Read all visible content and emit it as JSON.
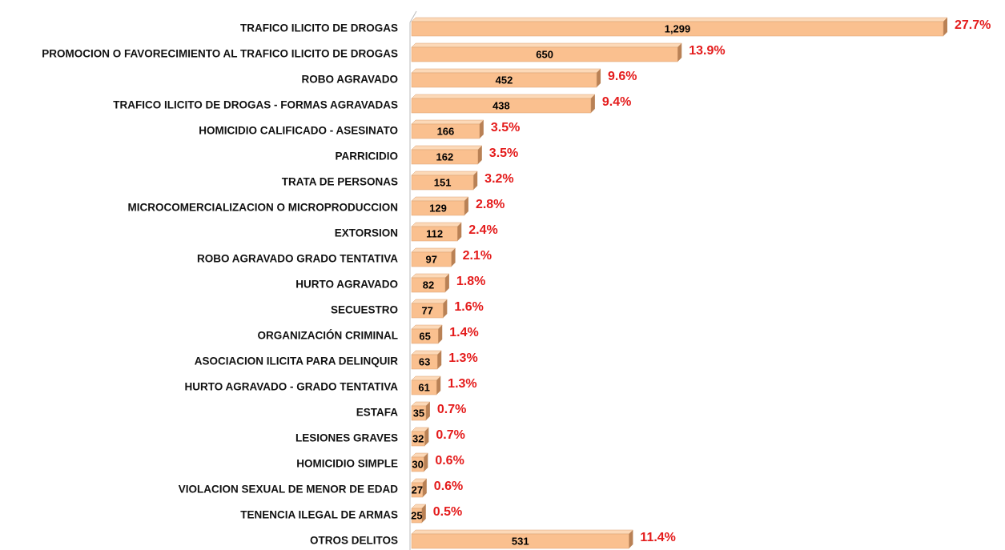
{
  "chart_data": {
    "type": "bar",
    "orientation": "horizontal",
    "categories": [
      "TRAFICO ILICITO DE DROGAS",
      "PROMOCION O FAVORECIMIENTO AL TRAFICO ILICITO DE DROGAS",
      "ROBO AGRAVADO",
      "TRAFICO ILICITO DE DROGAS - FORMAS AGRAVADAS",
      "HOMICIDIO CALIFICADO - ASESINATO",
      "PARRICIDIO",
      "TRATA DE PERSONAS",
      "MICROCOMERCIALIZACION O MICROPRODUCCION",
      "EXTORSION",
      "ROBO AGRAVADO GRADO TENTATIVA",
      "HURTO AGRAVADO",
      "SECUESTRO",
      "ORGANIZACIÓN CRIMINAL",
      "ASOCIACION ILICITA PARA DELINQUIR",
      "HURTO AGRAVADO - GRADO TENTATIVA",
      "ESTAFA",
      "LESIONES GRAVES",
      "HOMICIDIO SIMPLE",
      "VIOLACION SEXUAL DE MENOR DE EDAD",
      "TENENCIA ILEGAL DE ARMAS",
      "OTROS DELITOS"
    ],
    "values": [
      1299,
      650,
      452,
      438,
      166,
      162,
      151,
      129,
      112,
      97,
      82,
      77,
      65,
      63,
      61,
      35,
      32,
      30,
      27,
      25,
      531
    ],
    "value_labels": [
      "1,299",
      "650",
      "452",
      "438",
      "166",
      "162",
      "151",
      "129",
      "112",
      "97",
      "82",
      "77",
      "65",
      "63",
      "61",
      "35",
      "32",
      "30",
      "27",
      "25",
      "531"
    ],
    "percents": [
      27.7,
      13.9,
      9.6,
      9.4,
      3.5,
      3.5,
      3.2,
      2.8,
      2.4,
      2.1,
      1.8,
      1.6,
      1.4,
      1.3,
      1.3,
      0.7,
      0.7,
      0.6,
      0.6,
      0.5,
      11.4
    ],
    "percent_labels": [
      "27.7%",
      "13.9%",
      "9.6%",
      "9.4%",
      "3.5%",
      "3.5%",
      "3.2%",
      "2.8%",
      "2.4%",
      "2.1%",
      "1.8%",
      "1.6%",
      "1.4%",
      "1.3%",
      "1.3%",
      "0.7%",
      "0.7%",
      "0.6%",
      "0.6%",
      "0.5%",
      "11.4%"
    ],
    "color": "#fac08f",
    "percent_color": "#e41b1b"
  }
}
